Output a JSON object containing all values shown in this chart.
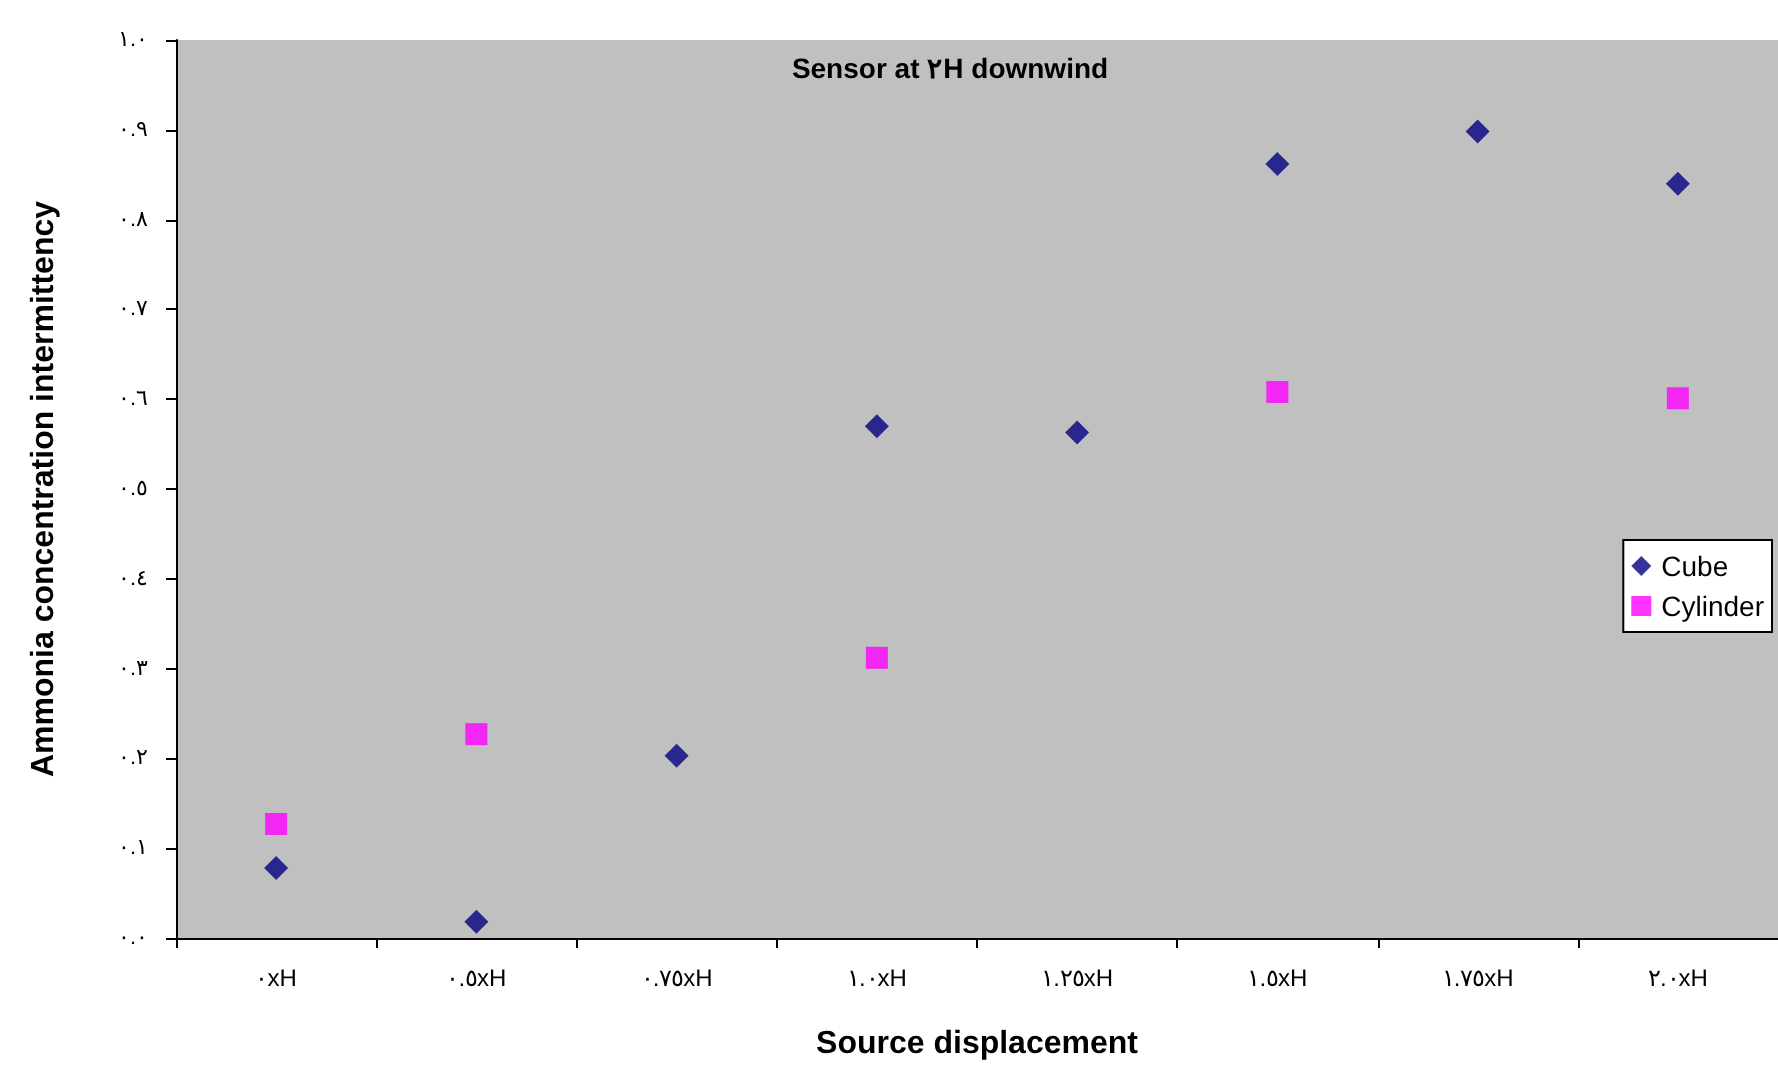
{
  "chart_data": {
    "type": "scatter",
    "title": "Sensor at ٢H downwind",
    "xlabel": "Source displacement",
    "ylabel": "Ammonia concentration intermittency",
    "categories": [
      "٠xH",
      "٠.٥xH",
      "٠.٧٥xH",
      "١.٠xH",
      "١.٢٥xH",
      "١.٥xH",
      "١.٧٥xH",
      "٢.٠xH"
    ],
    "series": [
      {
        "name": "Cube",
        "color": "#000080",
        "marker": "diamond",
        "values": [
          0.078,
          0.018,
          0.203,
          0.57,
          0.563,
          0.862,
          0.898,
          0.84
        ]
      },
      {
        "name": "Cylinder",
        "color": "#ff00ff",
        "marker": "square",
        "values": [
          0.127,
          0.227,
          null,
          0.312,
          null,
          0.608,
          null,
          0.601
        ]
      }
    ],
    "ylim": [
      0,
      1
    ],
    "yticks": [
      {
        "value": 0,
        "label": "٠.٠"
      },
      {
        "value": 0.1,
        "label": "٠.١"
      },
      {
        "value": 0.2,
        "label": "٠.٢"
      },
      {
        "value": 0.3,
        "label": "٠.٣"
      },
      {
        "value": 0.4,
        "label": "٠.٤"
      },
      {
        "value": 0.5,
        "label": "٠.٥"
      },
      {
        "value": 0.6,
        "label": "٠.٦"
      },
      {
        "value": 0.7,
        "label": "٠.٧"
      },
      {
        "value": 0.8,
        "label": "٠.٨"
      },
      {
        "value": 0.9,
        "label": "٠.٩"
      },
      {
        "value": 1,
        "label": "١.٠"
      }
    ],
    "grid": false,
    "legend": "right"
  }
}
